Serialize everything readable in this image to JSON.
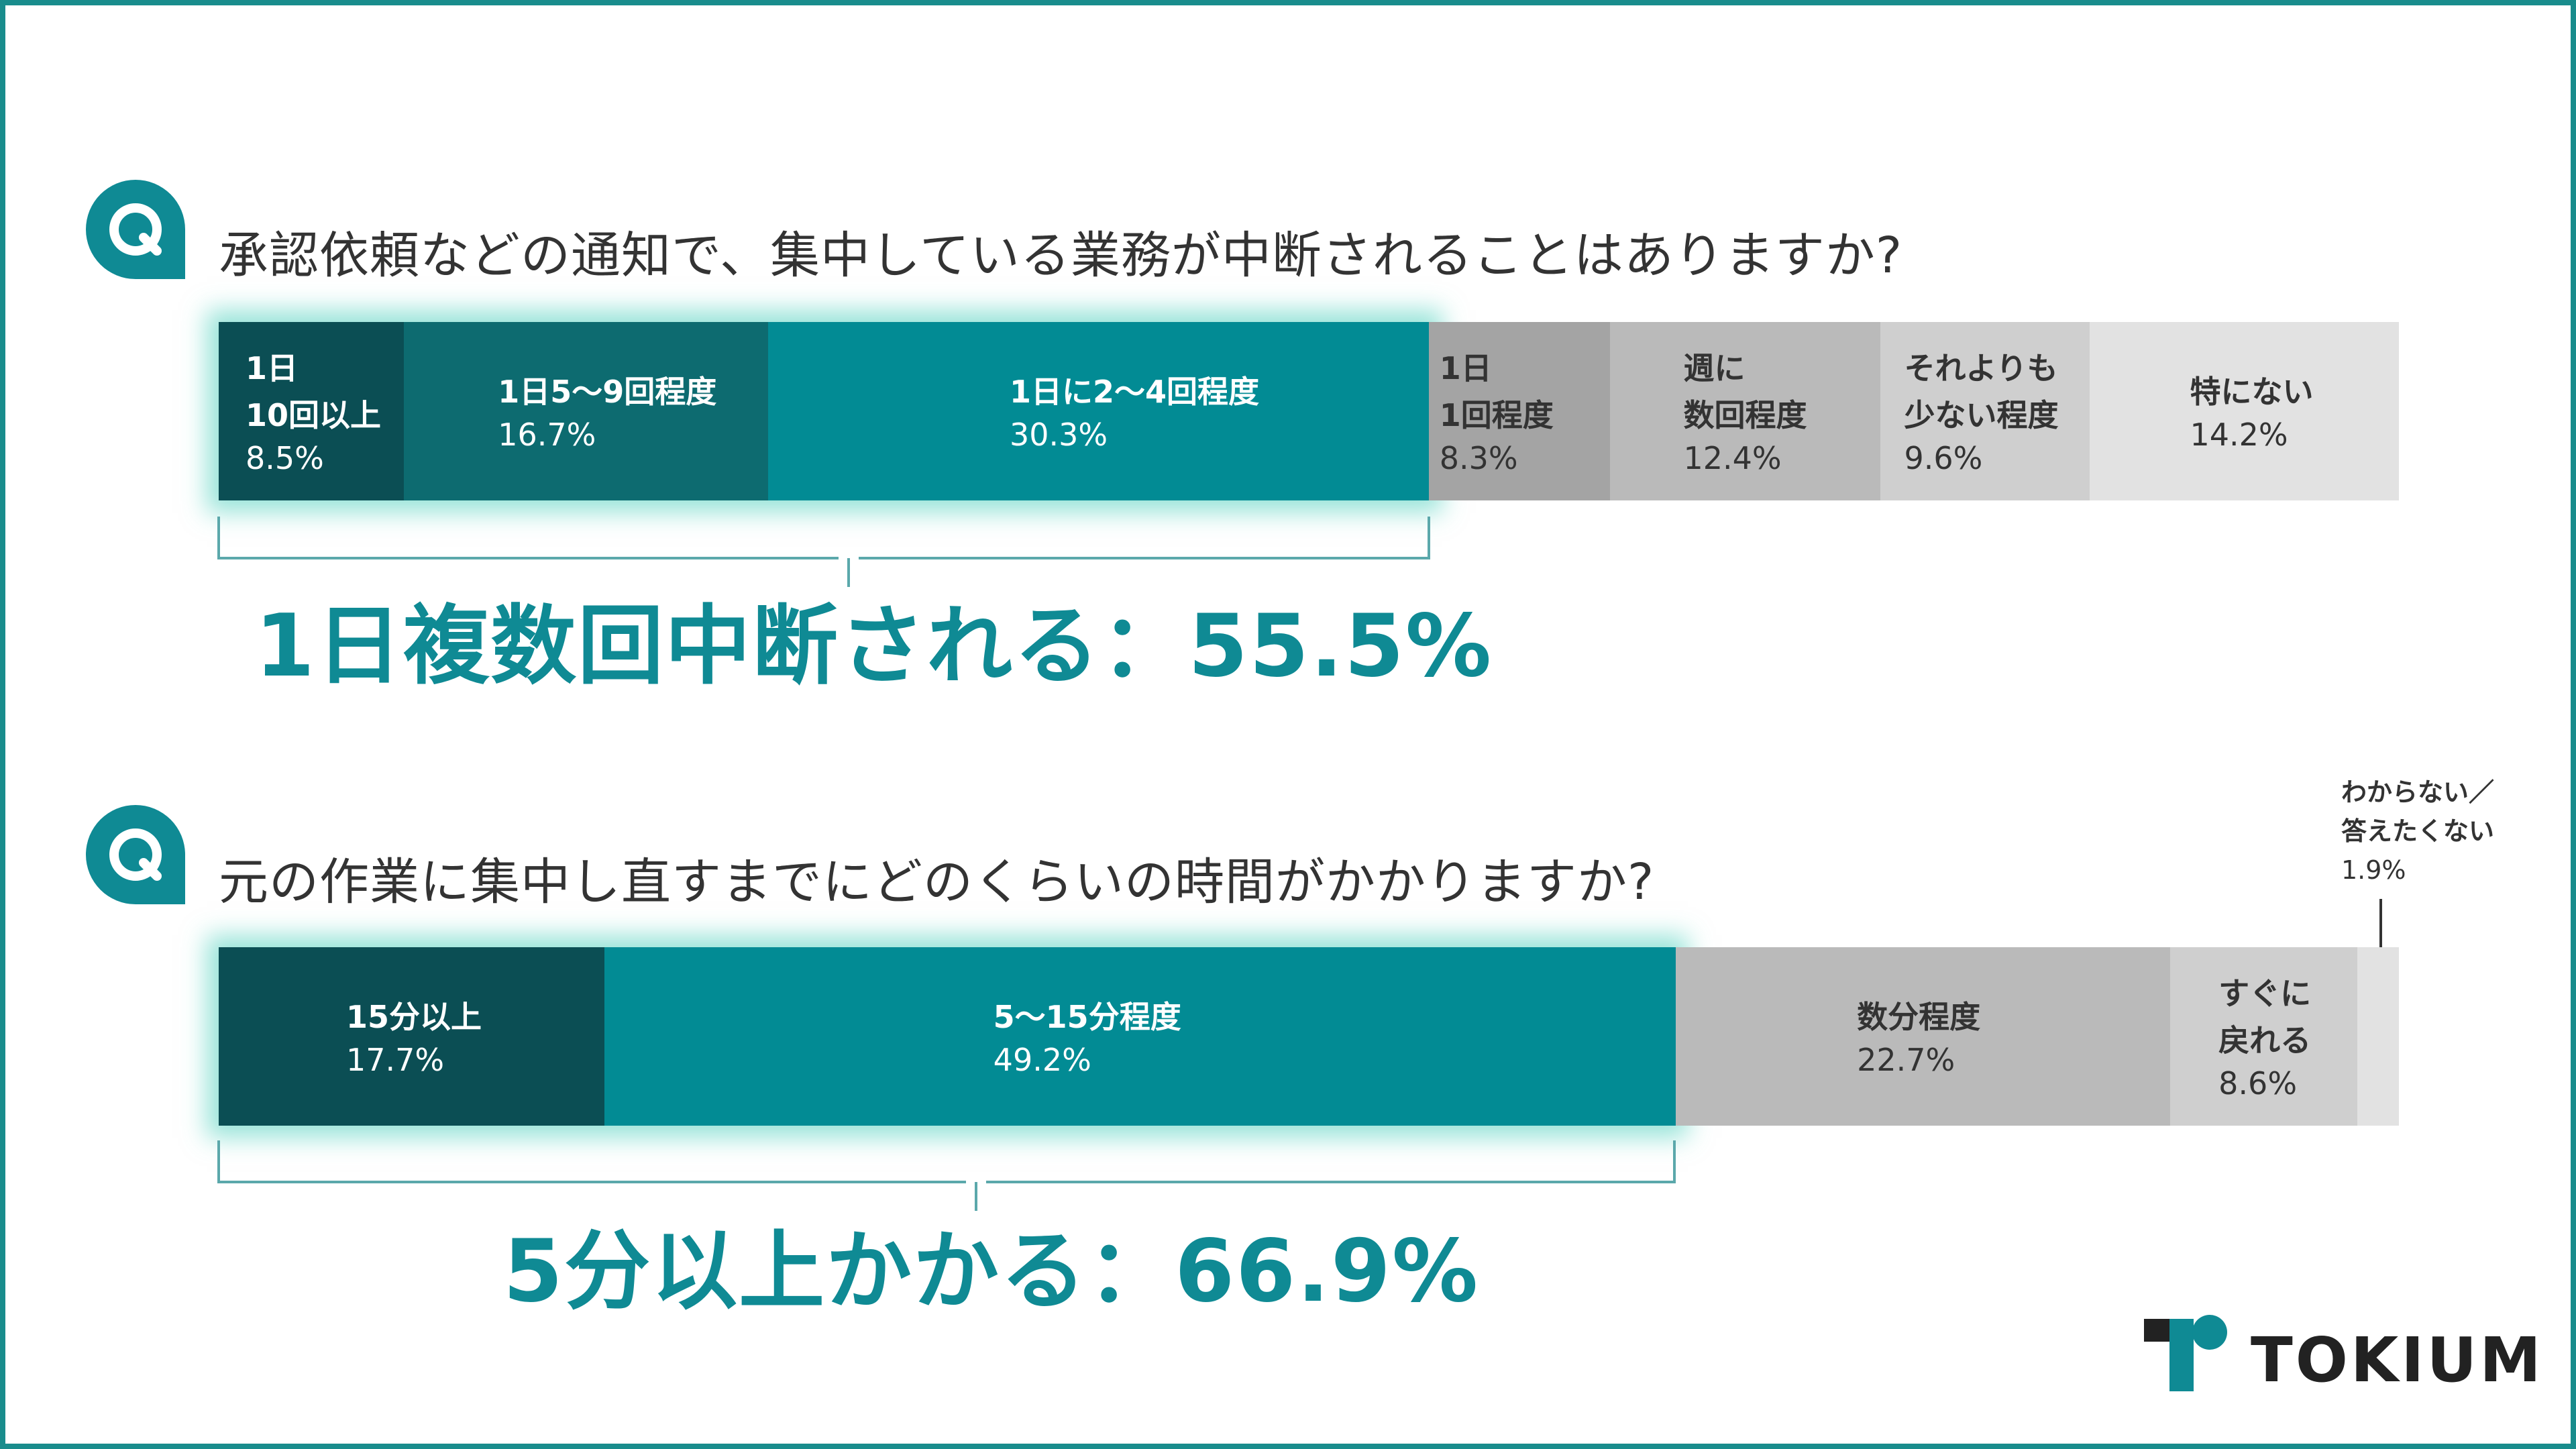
{
  "q1": {
    "question": "承認依頼などの通知で、集中している業務が中断されることはありますか?",
    "summary": "1日複数回中断される：55.5%"
  },
  "q2": {
    "question": "元の作業に集中し直すまでにどのくらいの時間がかかりますか?",
    "summary": "5分以上かかる：66.9%",
    "callout_label": "わからない／\n答えたくない",
    "callout_value": "1.9%"
  },
  "brand": {
    "name": "TOKIUM"
  },
  "colors": {
    "accent": "#0f8a94",
    "border": "#198c8c",
    "darkest": "#0b4e54",
    "dark": "#0d6b70",
    "teal": "#028b94",
    "gray1": "#a4a4a4",
    "gray2": "#bababa",
    "gray3": "#cfcfcf",
    "gray4": "#e2e2e2"
  },
  "chart_data": [
    {
      "type": "bar",
      "stacked": true,
      "orientation": "horizontal",
      "title": "承認依頼などの通知で、集中している業務が中断されることはありますか?",
      "unit": "%",
      "xlim": [
        0,
        100
      ],
      "categories": [
        "1日\n10回以上",
        "1日5〜9回程度",
        "1日に2〜4回程度",
        "1日\n1回程度",
        "週に\n数回程度",
        "それよりも\n少ない程度",
        "特にない"
      ],
      "values": [
        8.5,
        16.7,
        30.3,
        8.3,
        12.4,
        9.6,
        14.2
      ],
      "value_labels": [
        "8.5%",
        "16.7%",
        "30.3%",
        "8.3%",
        "12.4%",
        "9.6%",
        "14.2%"
      ],
      "highlight_count": 3,
      "annotation": "1日複数回中断される：55.5%"
    },
    {
      "type": "bar",
      "stacked": true,
      "orientation": "horizontal",
      "title": "元の作業に集中し直すまでにどのくらいの時間がかかりますか?",
      "unit": "%",
      "xlim": [
        0,
        100
      ],
      "categories": [
        "15分以上",
        "5〜15分程度",
        "数分程度",
        "すぐに\n戻れる",
        "わからない／答えたくない"
      ],
      "values": [
        17.7,
        49.2,
        22.7,
        8.6,
        1.9
      ],
      "value_labels": [
        "17.7%",
        "49.2%",
        "22.7%",
        "8.6%",
        "1.9%"
      ],
      "highlight_count": 2,
      "annotation": "5分以上かかる：66.9%"
    }
  ]
}
